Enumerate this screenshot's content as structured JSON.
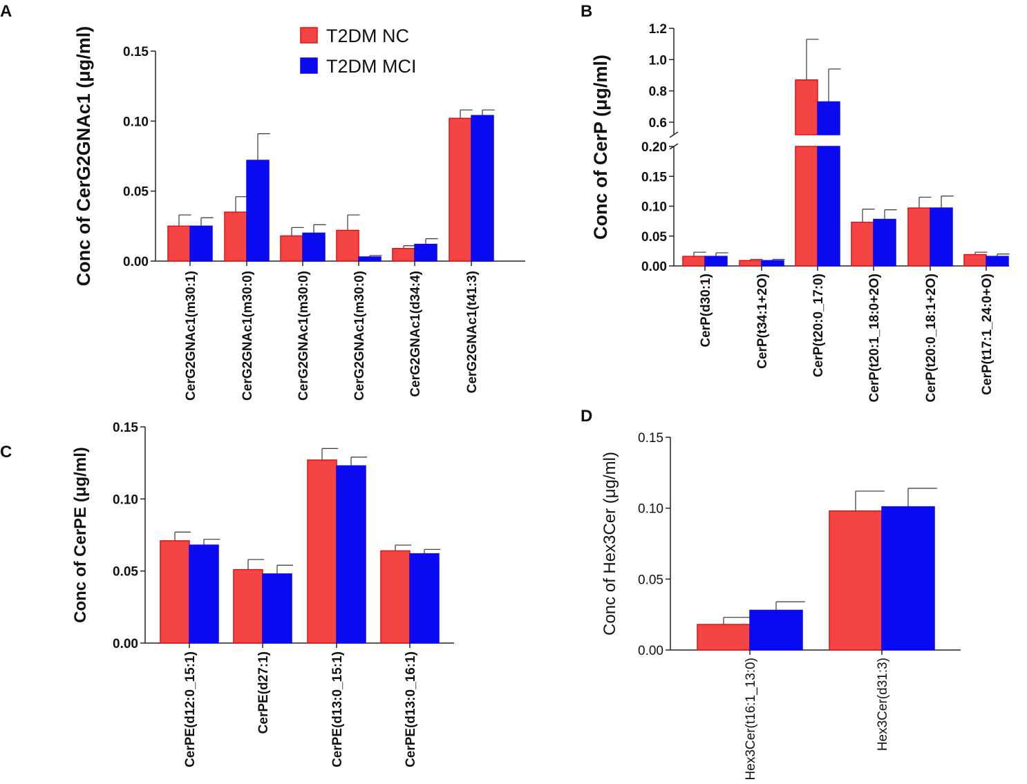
{
  "colors": {
    "nc": "#f54444",
    "nc_edge": "#e01010",
    "mci": "#0a0af0",
    "axis": "#222222"
  },
  "legend": {
    "items": [
      "T2DM NC",
      "T2DM MCI"
    ],
    "placement": "top of panel A"
  },
  "chart_data": [
    {
      "panel": "A",
      "type": "bar",
      "ylabel": "Conc of CerG2GNAc1 (μg/ml)",
      "ylim": [
        0,
        0.15
      ],
      "yticks": [
        "0.00",
        "0.05",
        "0.10",
        "0.15"
      ],
      "ytick_values": [
        0,
        0.05,
        0.1,
        0.15
      ],
      "categories": [
        "CerG2GNAc1(m30:1)",
        "CerG2GNAc1(m30:0)",
        "CerG2GNAc1(m30:0)",
        "CerG2GNAc1(m30:0)",
        "CerG2GNAc1(d34:4)",
        "CerG2GNAc1(t41:3)"
      ],
      "series": [
        {
          "name": "T2DM NC",
          "values": [
            0.025,
            0.035,
            0.018,
            0.022,
            0.009,
            0.102
          ],
          "errors": [
            0.008,
            0.011,
            0.006,
            0.011,
            0.002,
            0.006
          ]
        },
        {
          "name": "T2DM MCI",
          "values": [
            0.025,
            0.072,
            0.02,
            0.003,
            0.012,
            0.104
          ],
          "errors": [
            0.006,
            0.019,
            0.006,
            0.001,
            0.004,
            0.004
          ]
        }
      ]
    },
    {
      "panel": "B",
      "type": "bar",
      "ylabel": "Conc of CerP (μg/ml)",
      "ylim": [
        0,
        1.2
      ],
      "axis_break": [
        0.2,
        0.52
      ],
      "yticks": [
        "0.00",
        "0.05",
        "0.10",
        "0.15",
        "0.20",
        "0.6",
        "0.8",
        "1.0",
        "1.2"
      ],
      "ytick_values": [
        0,
        0.05,
        0.1,
        0.15,
        0.2,
        0.6,
        0.8,
        1.0,
        1.2
      ],
      "categories": [
        "CerP(d30:1)",
        "CerP(t34:1+2O)",
        "CerP(t20:0_17:0)",
        "CerP(t20:1_18:0+2O)",
        "CerP(t20:0_18:1+2O)",
        "CerP(t17:1_24:0+O)"
      ],
      "series": [
        {
          "name": "T2DM NC",
          "values": [
            0.016,
            0.009,
            0.87,
            0.073,
            0.097,
            0.019
          ],
          "errors": [
            0.007,
            0.002,
            0.26,
            0.022,
            0.018,
            0.004
          ]
        },
        {
          "name": "T2DM MCI",
          "values": [
            0.016,
            0.009,
            0.73,
            0.078,
            0.097,
            0.016
          ],
          "errors": [
            0.006,
            0.002,
            0.21,
            0.016,
            0.02,
            0.004
          ]
        }
      ]
    },
    {
      "panel": "C",
      "type": "bar",
      "ylabel": "Conc of CerPE (μg/ml)",
      "ylim": [
        0,
        0.15
      ],
      "yticks": [
        "0.00",
        "0.05",
        "0.10",
        "0.15"
      ],
      "ytick_values": [
        0,
        0.05,
        0.1,
        0.15
      ],
      "categories": [
        "CerPE(d12:0_15:1)",
        "CerPE(d27:1)",
        "CerPE(d13:0_15:1)",
        "CerPE(d13:0_16:1)"
      ],
      "series": [
        {
          "name": "T2DM NC",
          "values": [
            0.071,
            0.051,
            0.127,
            0.064
          ],
          "errors": [
            0.006,
            0.007,
            0.008,
            0.004
          ]
        },
        {
          "name": "T2DM MCI",
          "values": [
            0.068,
            0.048,
            0.123,
            0.062
          ],
          "errors": [
            0.004,
            0.006,
            0.006,
            0.003
          ]
        }
      ]
    },
    {
      "panel": "D",
      "type": "bar",
      "ylabel": "Conc of Hex3Cer (μg/ml)",
      "ylim": [
        0,
        0.15
      ],
      "yticks": [
        "0.00",
        "0.05",
        "0.10",
        "0.15"
      ],
      "ytick_values": [
        0,
        0.05,
        0.1,
        0.15
      ],
      "categories": [
        "Hex3Cer(t16:1_13:0)",
        "Hex3Cer(d31:3)"
      ],
      "series": [
        {
          "name": "T2DM NC",
          "values": [
            0.018,
            0.098
          ],
          "errors": [
            0.005,
            0.014
          ]
        },
        {
          "name": "T2DM MCI",
          "values": [
            0.028,
            0.101
          ],
          "errors": [
            0.006,
            0.013
          ]
        }
      ]
    }
  ]
}
